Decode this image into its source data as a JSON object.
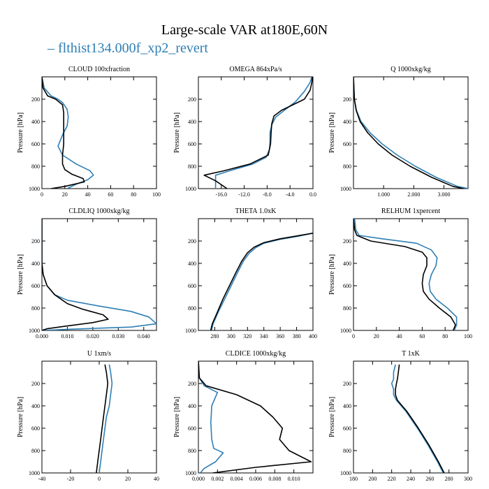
{
  "figure": {
    "title": "Large-scale VAR at180E,60N",
    "legend_label": "flthist134.000f_xp2_revert",
    "legend_marker": "–",
    "colors": {
      "new": "#2f7fb5",
      "control": "#000000"
    }
  },
  "chart_data": [
    {
      "type": "line",
      "title": "CLOUD  100xfraction",
      "ylabel": "Pressure [hPa]",
      "xlim": [
        0,
        100
      ],
      "xticks": [
        0,
        20,
        40,
        60,
        80,
        100
      ],
      "xtick_labels": [
        "0",
        "20",
        "40",
        "60",
        "80",
        "100"
      ],
      "ylim": [
        1000,
        0
      ],
      "yticks": [
        200,
        400,
        600,
        800,
        1000
      ],
      "ytick_labels": [
        "200",
        "400",
        "600",
        "800",
        "1000"
      ],
      "series": [
        {
          "key": "new",
          "x": [
            0,
            2,
            8,
            14,
            18,
            22,
            23,
            22,
            18,
            14,
            18,
            30,
            42,
            45,
            40,
            30,
            22
          ],
          "y": [
            0,
            100,
            170,
            200,
            230,
            290,
            360,
            440,
            520,
            620,
            700,
            780,
            840,
            880,
            920,
            960,
            1000
          ]
        },
        {
          "key": "control",
          "x": [
            0,
            1,
            5,
            12,
            18,
            19,
            19,
            19,
            19,
            18,
            18,
            20,
            26,
            36,
            37,
            20,
            8
          ],
          "y": [
            0,
            100,
            170,
            200,
            250,
            320,
            400,
            500,
            600,
            700,
            780,
            830,
            870,
            910,
            940,
            980,
            1000
          ]
        }
      ]
    },
    {
      "type": "line",
      "title": "OMEGA  864xPa/s",
      "ylabel": "Pressure [hPa]",
      "xlim": [
        -20,
        0
      ],
      "xticks": [
        -16,
        -12,
        -8,
        -4,
        0
      ],
      "xtick_labels": [
        "-16.0",
        "-12.0",
        "-8.0",
        "-4.0",
        "0.0"
      ],
      "ylim": [
        1000,
        0
      ],
      "yticks": [
        200,
        400,
        600,
        800,
        1000
      ],
      "ytick_labels": [
        "200",
        "400",
        "600",
        "800",
        "1000"
      ],
      "series": [
        {
          "key": "new",
          "x": [
            -0.2,
            -0.5,
            -1.5,
            -3,
            -5,
            -6.5,
            -7.2,
            -7.5,
            -7.5,
            -7.6,
            -8.2,
            -10.5,
            -14.5,
            -17,
            -17
          ],
          "y": [
            0,
            50,
            130,
            220,
            300,
            360,
            430,
            500,
            580,
            650,
            720,
            780,
            840,
            880,
            1000
          ]
        },
        {
          "key": "control",
          "x": [
            -0.1,
            -0.2,
            -0.5,
            -1.5,
            -3.5,
            -5.5,
            -6.8,
            -7.2,
            -7.3,
            -7.4,
            -7.8,
            -11,
            -15.5,
            -19,
            -17,
            -15
          ],
          "y": [
            0,
            50,
            120,
            200,
            250,
            300,
            350,
            420,
            500,
            600,
            700,
            780,
            840,
            880,
            930,
            1000
          ]
        }
      ]
    },
    {
      "type": "line",
      "title": "Q  1000xkg/kg",
      "ylabel": "Pressure [hPa]",
      "xlim": [
        0,
        3.8
      ],
      "xticks": [
        1,
        2,
        3
      ],
      "xtick_labels": [
        "1.000",
        "2.000",
        "3.000"
      ],
      "ylim": [
        1000,
        0
      ],
      "yticks": [
        200,
        400,
        600,
        800,
        1000
      ],
      "ytick_labels": [
        "200",
        "400",
        "600",
        "800",
        "1000"
      ],
      "series": [
        {
          "key": "new",
          "x": [
            0.0,
            0.03,
            0.1,
            0.25,
            0.55,
            0.95,
            1.45,
            2.05,
            2.75,
            3.45,
            3.8
          ],
          "y": [
            0,
            200,
            300,
            400,
            500,
            600,
            700,
            800,
            900,
            980,
            1000
          ]
        },
        {
          "key": "control",
          "x": [
            0.0,
            0.03,
            0.09,
            0.22,
            0.47,
            0.82,
            1.28,
            1.88,
            2.6,
            3.3,
            3.65
          ],
          "y": [
            0,
            200,
            300,
            400,
            500,
            600,
            700,
            800,
            900,
            980,
            1000
          ]
        }
      ]
    },
    {
      "type": "line",
      "title": "CLDLIQ  1000xkg/kg",
      "ylabel": "Pressure [hPa]",
      "xlim": [
        0,
        0.045
      ],
      "xticks": [
        0,
        0.01,
        0.02,
        0.03,
        0.04
      ],
      "xtick_labels": [
        "0.000",
        "0.010",
        "0.020",
        "0.030",
        "0.040"
      ],
      "ylim": [
        1000,
        0
      ],
      "yticks": [
        200,
        400,
        600,
        800,
        1000
      ],
      "ytick_labels": [
        "200",
        "400",
        "600",
        "800",
        "1000"
      ],
      "series": [
        {
          "key": "new",
          "x": [
            0,
            0,
            0.0005,
            0.002,
            0.005,
            0.01,
            0.022,
            0.035,
            0.042,
            0.045,
            0.035,
            0.01,
            0
          ],
          "y": [
            0,
            400,
            500,
            600,
            680,
            730,
            780,
            830,
            880,
            940,
            970,
            990,
            1000
          ]
        },
        {
          "key": "control",
          "x": [
            0,
            0,
            0.0005,
            0.002,
            0.005,
            0.01,
            0.016,
            0.024,
            0.026,
            0.02,
            0.01,
            0.002,
            0
          ],
          "y": [
            0,
            400,
            500,
            600,
            680,
            760,
            810,
            860,
            900,
            930,
            960,
            985,
            1000
          ]
        }
      ]
    },
    {
      "type": "line",
      "title": "THETA  1.0xK",
      "ylabel": "",
      "xlim": [
        260,
        400
      ],
      "xticks": [
        280,
        300,
        320,
        340,
        360,
        380,
        400
      ],
      "xtick_labels": [
        "280",
        "300",
        "320",
        "340",
        "360",
        "380",
        "400"
      ],
      "ylim": [
        1000,
        0
      ],
      "yticks": [
        200,
        400,
        600,
        800,
        1000
      ],
      "ytick_labels": [
        "200",
        "400",
        "600",
        "800",
        "1000"
      ],
      "series": [
        {
          "key": "new",
          "x": [
            400,
            380,
            360,
            340,
            330,
            322,
            315,
            308,
            300,
            292,
            284,
            278,
            276
          ],
          "y": [
            130,
            160,
            185,
            220,
            260,
            310,
            380,
            480,
            600,
            720,
            840,
            940,
            1000
          ]
        },
        {
          "key": "control",
          "x": [
            400,
            380,
            360,
            340,
            328,
            320,
            313,
            306,
            298,
            290,
            283,
            277,
            275
          ],
          "y": [
            130,
            155,
            180,
            215,
            255,
            305,
            380,
            480,
            600,
            720,
            840,
            940,
            1000
          ]
        }
      ]
    },
    {
      "type": "line",
      "title": "RELHUM  1xpercent",
      "ylabel": "Pressure [hPa]",
      "xlim": [
        0,
        100
      ],
      "xticks": [
        0,
        20,
        40,
        60,
        80,
        100
      ],
      "xtick_labels": [
        "0",
        "20",
        "40",
        "60",
        "80",
        "100"
      ],
      "ylim": [
        1000,
        0
      ],
      "yticks": [
        200,
        400,
        600,
        800,
        1000
      ],
      "ytick_labels": [
        "200",
        "400",
        "600",
        "800",
        "1000"
      ],
      "series": [
        {
          "key": "new",
          "x": [
            1,
            2,
            5,
            25,
            55,
            68,
            73,
            72,
            68,
            66,
            67,
            72,
            82,
            90,
            90,
            88
          ],
          "y": [
            0,
            100,
            150,
            180,
            220,
            280,
            350,
            420,
            500,
            580,
            650,
            720,
            800,
            880,
            950,
            1000
          ]
        },
        {
          "key": "control",
          "x": [
            0,
            1,
            3,
            15,
            45,
            60,
            64,
            64,
            61,
            60,
            61,
            66,
            75,
            85,
            89,
            87
          ],
          "y": [
            0,
            100,
            150,
            200,
            250,
            300,
            350,
            420,
            500,
            580,
            650,
            720,
            800,
            880,
            950,
            1000
          ]
        }
      ]
    },
    {
      "type": "line",
      "title": "U  1xm/s",
      "ylabel": "Pressure [hPa]",
      "xlim": [
        -40,
        40
      ],
      "xticks": [
        -40,
        -20,
        0,
        20,
        40
      ],
      "xtick_labels": [
        "-40",
        "-20",
        "0",
        "20",
        "40"
      ],
      "ylim": [
        1000,
        0
      ],
      "yticks": [
        200,
        400,
        600,
        800,
        1000
      ],
      "ytick_labels": [
        "200",
        "400",
        "600",
        "800",
        "1000"
      ],
      "series": [
        {
          "key": "new",
          "x": [
            7,
            8,
            9,
            8,
            7,
            5,
            4,
            3,
            2,
            1,
            0
          ],
          "y": [
            30,
            100,
            200,
            300,
            400,
            500,
            600,
            700,
            800,
            900,
            1000
          ]
        },
        {
          "key": "control",
          "x": [
            4,
            5,
            6,
            5,
            4,
            3,
            2,
            1,
            0,
            -1,
            -2
          ],
          "y": [
            30,
            100,
            200,
            300,
            400,
            500,
            600,
            700,
            800,
            900,
            1000
          ]
        }
      ]
    },
    {
      "type": "line",
      "title": "CLDICE  1000xkg/kg",
      "ylabel": "Pressure [hPa]",
      "xlim": [
        0,
        0.012
      ],
      "xticks": [
        0,
        0.002,
        0.004,
        0.006,
        0.008,
        0.01
      ],
      "xtick_labels": [
        "0.000",
        "0.002",
        "0.004",
        "0.006",
        "0.008",
        "0.010"
      ],
      "ylim": [
        1000,
        0
      ],
      "yticks": [
        200,
        400,
        600,
        800,
        1000
      ],
      "ytick_labels": [
        "200",
        "400",
        "600",
        "800",
        "1000"
      ],
      "series": [
        {
          "key": "new",
          "x": [
            0,
            0.0001,
            0.0006,
            0.002,
            0.0014,
            0.0013,
            0.0014,
            0.0016,
            0.0026,
            0.0018,
            0.0006,
            0.0002
          ],
          "y": [
            0,
            150,
            220,
            280,
            400,
            550,
            700,
            780,
            820,
            900,
            960,
            1000
          ]
        },
        {
          "key": "control",
          "x": [
            0,
            0.0001,
            0.0008,
            0.004,
            0.0065,
            0.0078,
            0.0088,
            0.0085,
            0.0095,
            0.0118,
            0.006,
            0.0015
          ],
          "y": [
            0,
            150,
            220,
            300,
            400,
            500,
            600,
            700,
            800,
            900,
            950,
            1000
          ]
        }
      ]
    },
    {
      "type": "line",
      "title": "T  1xK",
      "ylabel": "Pressure [hPa]",
      "xlim": [
        180,
        300
      ],
      "xticks": [
        180,
        200,
        220,
        240,
        260,
        280,
        300
      ],
      "xtick_labels": [
        "180",
        "200",
        "220",
        "240",
        "260",
        "280",
        "300"
      ],
      "ylim": [
        1000,
        0
      ],
      "yticks": [
        200,
        400,
        600,
        800,
        1000
      ],
      "ytick_labels": [
        "200",
        "400",
        "600",
        "800",
        "1000"
      ],
      "series": [
        {
          "key": "new",
          "x": [
            224,
            222,
            222,
            220,
            222,
            222,
            225,
            235,
            247,
            258,
            268,
            274
          ],
          "y": [
            30,
            100,
            160,
            200,
            250,
            300,
            350,
            450,
            600,
            750,
            900,
            1000
          ]
        },
        {
          "key": "control",
          "x": [
            228,
            227,
            226,
            225,
            224,
            224,
            226,
            236,
            248,
            259,
            269,
            275
          ],
          "y": [
            30,
            100,
            160,
            200,
            250,
            300,
            350,
            450,
            600,
            750,
            900,
            1000
          ]
        }
      ]
    }
  ]
}
